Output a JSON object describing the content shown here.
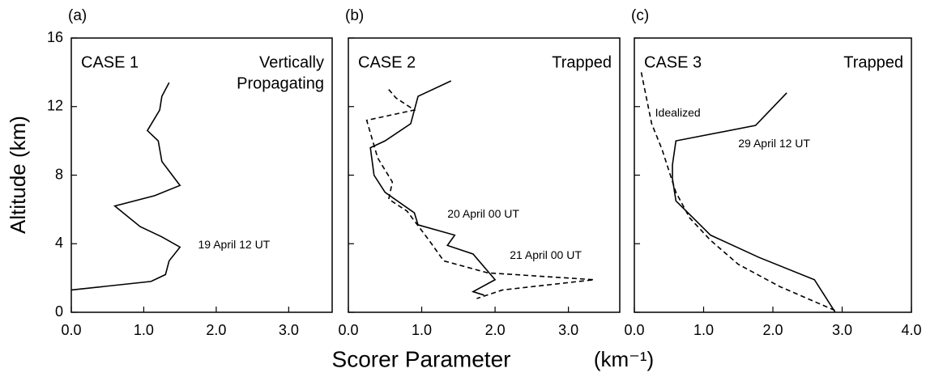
{
  "ylabel": "Altitude (km)",
  "xlabel": "Scorer Parameter",
  "xlabel_unit": "(km⁻¹)",
  "chart_data": [
    {
      "type": "line",
      "panel_label": "(a)",
      "case": "CASE 1",
      "regime": [
        "Vertically",
        "Propagating"
      ],
      "xlim": [
        0,
        3.6
      ],
      "ylim": [
        0,
        16
      ],
      "xticks": [
        {
          "value": 0,
          "label": "0.0"
        },
        {
          "value": 1,
          "label": "1.0"
        },
        {
          "value": 2,
          "label": "2.0"
        },
        {
          "value": 3,
          "label": "3.0"
        }
      ],
      "yticks": [
        0,
        4,
        8,
        12,
        16
      ],
      "series": [
        {
          "name": "19 April  12 UT",
          "color": "#000000",
          "style": "solid",
          "x": [
            1.35,
            1.25,
            1.22,
            1.05,
            1.2,
            1.25,
            1.5,
            1.15,
            0.6,
            0.95,
            1.25,
            1.5,
            1.35,
            1.3,
            1.1,
            0.0
          ],
          "values": [
            13.4,
            12.6,
            11.8,
            10.6,
            10.0,
            8.8,
            7.4,
            6.8,
            6.2,
            5.0,
            4.4,
            3.8,
            3.0,
            2.2,
            1.8,
            1.3
          ]
        }
      ]
    },
    {
      "type": "line",
      "panel_label": "(b)",
      "case": "CASE 2",
      "regime": [
        "Trapped"
      ],
      "xlim": [
        0,
        3.7
      ],
      "ylim": [
        0,
        16
      ],
      "xticks": [
        {
          "value": 0,
          "label": "0.0"
        },
        {
          "value": 1,
          "label": "1.0"
        },
        {
          "value": 2,
          "label": "2.0"
        },
        {
          "value": 3,
          "label": "3.0"
        }
      ],
      "series": [
        {
          "name": "20 April 00 UT",
          "color": "#000000",
          "style": "solid",
          "x": [
            1.4,
            0.95,
            0.85,
            0.5,
            0.3,
            0.35,
            0.5,
            0.9,
            0.95,
            1.45,
            1.35,
            1.7,
            2.0,
            1.7,
            1.85
          ],
          "values": [
            13.5,
            12.6,
            11.0,
            10.0,
            9.6,
            8.0,
            7.0,
            5.8,
            5.1,
            4.5,
            3.9,
            3.4,
            1.9,
            1.2,
            1.0
          ]
        },
        {
          "name": "21 April  00 UT",
          "color": "#000000",
          "style": "dashed",
          "x": [
            0.55,
            0.65,
            0.9,
            0.25,
            0.4,
            0.6,
            0.55,
            0.8,
            1.1,
            1.3,
            1.9,
            3.35,
            2.1,
            1.75
          ],
          "values": [
            13.0,
            12.5,
            11.8,
            11.2,
            9.0,
            7.6,
            6.6,
            5.9,
            4.2,
            3.0,
            2.3,
            1.9,
            1.3,
            0.8
          ]
        }
      ]
    },
    {
      "type": "line",
      "panel_label": "(c)",
      "case": "CASE 3",
      "regime": [
        "Trapped"
      ],
      "xlim": [
        0,
        4.0
      ],
      "ylim": [
        0,
        16
      ],
      "xticks": [
        {
          "value": 0,
          "label": "0.0"
        },
        {
          "value": 1,
          "label": "1.0"
        },
        {
          "value": 2,
          "label": "2.0"
        },
        {
          "value": 3,
          "label": "3.0"
        },
        {
          "value": 4,
          "label": "4.0"
        }
      ],
      "series": [
        {
          "name": "29 April  12 UT",
          "color": "#000000",
          "style": "solid",
          "x": [
            2.2,
            1.75,
            0.6,
            0.55,
            0.55,
            0.6,
            0.85,
            1.1,
            1.8,
            2.6,
            2.9
          ],
          "values": [
            12.8,
            10.9,
            10.0,
            8.6,
            7.8,
            6.5,
            5.5,
            4.5,
            3.2,
            1.9,
            0.0
          ]
        },
        {
          "name": "Idealized",
          "color": "#000000",
          "style": "dashed",
          "x": [
            0.1,
            0.25,
            0.4,
            0.6,
            0.8,
            1.1,
            1.5,
            2.1,
            2.9
          ],
          "values": [
            14.0,
            11.0,
            9.5,
            7.0,
            5.5,
            4.2,
            2.8,
            1.5,
            0.1
          ]
        }
      ]
    }
  ]
}
